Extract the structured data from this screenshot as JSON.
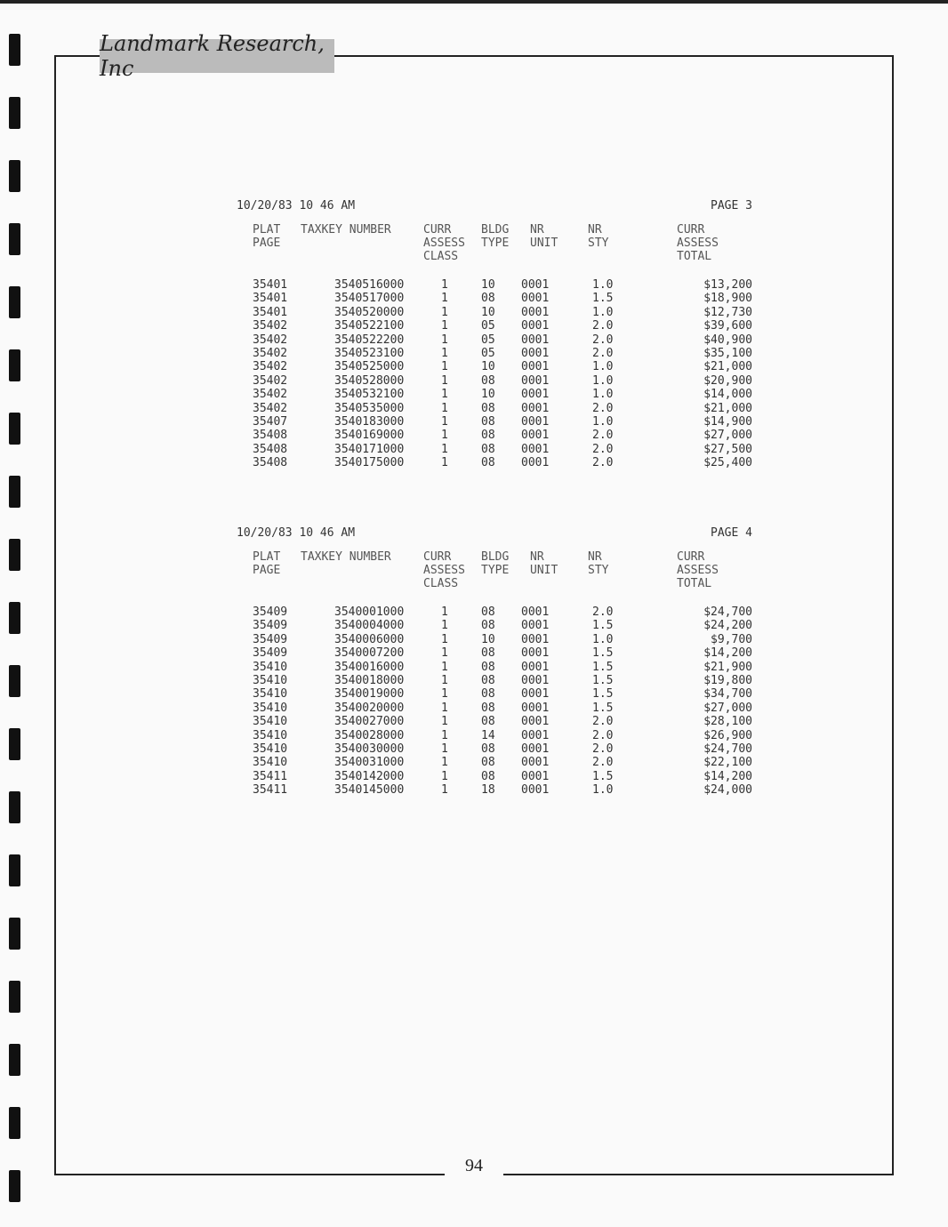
{
  "logo": "Landmark Research, Inc",
  "page_number": "94",
  "columns": [
    "PLAT\nPAGE",
    "TAXKEY NUMBER",
    "CURR\nASSESS\nCLASS",
    "BLDG\nTYPE",
    "NR\nUNIT",
    "NR\nSTY",
    "CURR\nASSESS\nTOTAL"
  ],
  "reports": [
    {
      "date": "10/20/83",
      "time": "10 46 AM",
      "page": "PAGE 3",
      "rows": [
        [
          "35401",
          "3540516000",
          "1",
          "10",
          "0001",
          "1.0",
          "$13,200"
        ],
        [
          "35401",
          "3540517000",
          "1",
          "08",
          "0001",
          "1.5",
          "$18,900"
        ],
        [
          "35401",
          "3540520000",
          "1",
          "10",
          "0001",
          "1.0",
          "$12,730"
        ],
        [
          "35402",
          "3540522100",
          "1",
          "05",
          "0001",
          "2.0",
          "$39,600"
        ],
        [
          "35402",
          "3540522200",
          "1",
          "05",
          "0001",
          "2.0",
          "$40,900"
        ],
        [
          "35402",
          "3540523100",
          "1",
          "05",
          "0001",
          "2.0",
          "$35,100"
        ],
        [
          "35402",
          "3540525000",
          "1",
          "10",
          "0001",
          "1.0",
          "$21,000"
        ],
        [
          "35402",
          "3540528000",
          "1",
          "08",
          "0001",
          "1.0",
          "$20,900"
        ],
        [
          "35402",
          "3540532100",
          "1",
          "10",
          "0001",
          "1.0",
          "$14,000"
        ],
        [
          "35402",
          "3540535000",
          "1",
          "08",
          "0001",
          "2.0",
          "$21,000"
        ],
        [
          "35407",
          "3540183000",
          "1",
          "08",
          "0001",
          "1.0",
          "$14,900"
        ],
        [
          "35408",
          "3540169000",
          "1",
          "08",
          "0001",
          "2.0",
          "$27,000"
        ],
        [
          "35408",
          "3540171000",
          "1",
          "08",
          "0001",
          "2.0",
          "$27,500"
        ],
        [
          "35408",
          "3540175000",
          "1",
          "08",
          "0001",
          "2.0",
          "$25,400"
        ]
      ]
    },
    {
      "date": "10/20/83",
      "time": "10 46 AM",
      "page": "PAGE 4",
      "rows": [
        [
          "35409",
          "3540001000",
          "1",
          "08",
          "0001",
          "2.0",
          "$24,700"
        ],
        [
          "35409",
          "3540004000",
          "1",
          "08",
          "0001",
          "1.5",
          "$24,200"
        ],
        [
          "35409",
          "3540006000",
          "1",
          "10",
          "0001",
          "1.0",
          "$9,700"
        ],
        [
          "35409",
          "3540007200",
          "1",
          "08",
          "0001",
          "1.5",
          "$14,200"
        ],
        [
          "35410",
          "3540016000",
          "1",
          "08",
          "0001",
          "1.5",
          "$21,900"
        ],
        [
          "35410",
          "3540018000",
          "1",
          "08",
          "0001",
          "1.5",
          "$19,800"
        ],
        [
          "35410",
          "3540019000",
          "1",
          "08",
          "0001",
          "1.5",
          "$34,700"
        ],
        [
          "35410",
          "3540020000",
          "1",
          "08",
          "0001",
          "1.5",
          "$27,000"
        ],
        [
          "35410",
          "3540027000",
          "1",
          "08",
          "0001",
          "2.0",
          "$28,100"
        ],
        [
          "35410",
          "3540028000",
          "1",
          "14",
          "0001",
          "2.0",
          "$26,900"
        ],
        [
          "35410",
          "3540030000",
          "1",
          "08",
          "0001",
          "2.0",
          "$24,700"
        ],
        [
          "35410",
          "3540031000",
          "1",
          "08",
          "0001",
          "2.0",
          "$22,100"
        ],
        [
          "35411",
          "3540142000",
          "1",
          "08",
          "0001",
          "1.5",
          "$14,200"
        ],
        [
          "35411",
          "3540145000",
          "1",
          "18",
          "0001",
          "1.0",
          "$24,000"
        ]
      ]
    }
  ]
}
